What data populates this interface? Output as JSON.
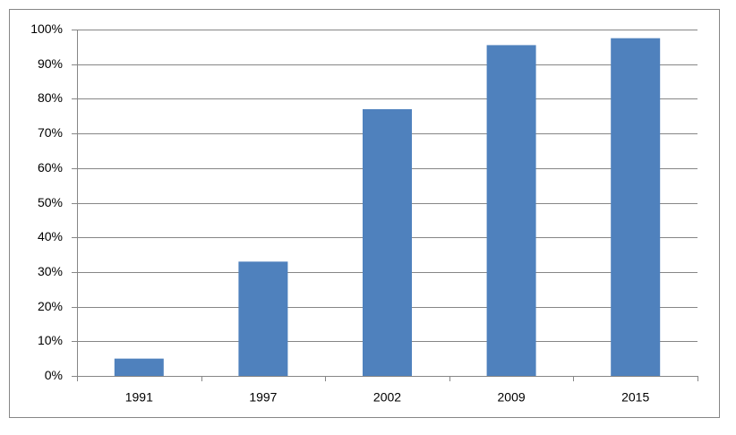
{
  "chart_data": {
    "type": "bar",
    "categories": [
      "1991",
      "1997",
      "2002",
      "2009",
      "2015"
    ],
    "values": [
      5,
      33,
      77,
      95.5,
      97.5
    ],
    "color": "#4f81bd",
    "ylim": [
      0,
      100
    ],
    "yticks": [
      {
        "value": 0,
        "label": "0%"
      },
      {
        "value": 10,
        "label": "10%"
      },
      {
        "value": 20,
        "label": "20%"
      },
      {
        "value": 30,
        "label": "30%"
      },
      {
        "value": 40,
        "label": "40%"
      },
      {
        "value": 50,
        "label": "50%"
      },
      {
        "value": 60,
        "label": "60%"
      },
      {
        "value": 70,
        "label": "70%"
      },
      {
        "value": 80,
        "label": "80%"
      },
      {
        "value": 90,
        "label": "90%"
      },
      {
        "value": 100,
        "label": "100%"
      }
    ],
    "grid": true
  }
}
